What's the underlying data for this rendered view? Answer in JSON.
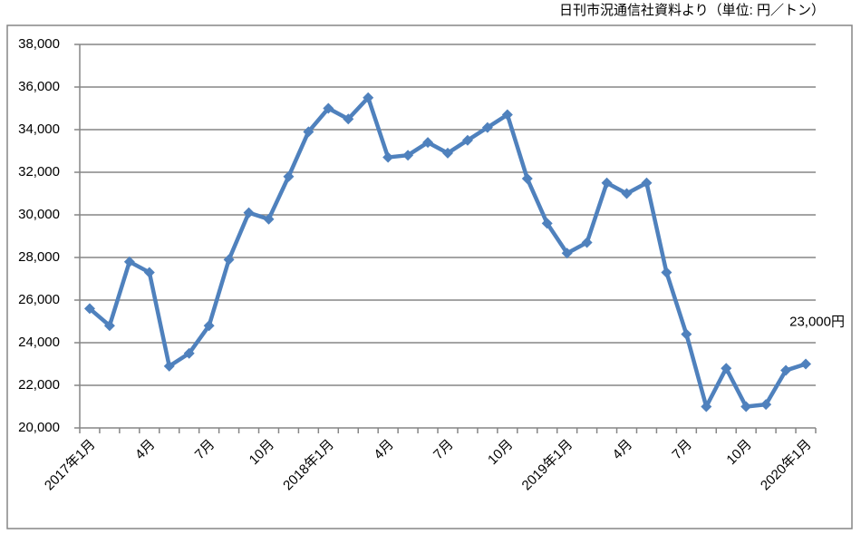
{
  "chart_data": {
    "type": "line",
    "source_note": "日刊市況通信社資料より（単位: 円／トン）",
    "annotation": "23,000円",
    "categories": [
      "2017年1月",
      null,
      null,
      "4月",
      null,
      null,
      "7月",
      null,
      null,
      "10月",
      null,
      null,
      "2018年1月",
      null,
      null,
      "4月",
      null,
      null,
      "7月",
      null,
      null,
      "10月",
      null,
      null,
      "2019年1月",
      null,
      null,
      "4月",
      null,
      null,
      "7月",
      null,
      null,
      "10月",
      null,
      null,
      "2020年1月"
    ],
    "series": [
      {
        "color": "#4f81bd",
        "values": [
          25600,
          24800,
          27800,
          27300,
          22900,
          23500,
          24800,
          27900,
          30100,
          29800,
          31800,
          33900,
          35000,
          34500,
          35500,
          32700,
          32800,
          33400,
          32900,
          33500,
          34100,
          34700,
          31700,
          29600,
          28200,
          28700,
          31500,
          31000,
          31500,
          27300,
          24400,
          21000,
          22800,
          21000,
          21100,
          22700,
          23000
        ]
      }
    ],
    "ylim": [
      20000,
      38000
    ],
    "yticks": [
      {
        "value": 20000,
        "label": "20,000"
      },
      {
        "value": 22000,
        "label": "22,000"
      },
      {
        "value": 24000,
        "label": "24,000"
      },
      {
        "value": 26000,
        "label": "26,000"
      },
      {
        "value": 28000,
        "label": "28,000"
      },
      {
        "value": 30000,
        "label": "30,000"
      },
      {
        "value": 32000,
        "label": "32,000"
      },
      {
        "value": 34000,
        "label": "34,000"
      },
      {
        "value": 36000,
        "label": "36,000"
      },
      {
        "value": 38000,
        "label": "38,000"
      }
    ],
    "grid": true
  }
}
